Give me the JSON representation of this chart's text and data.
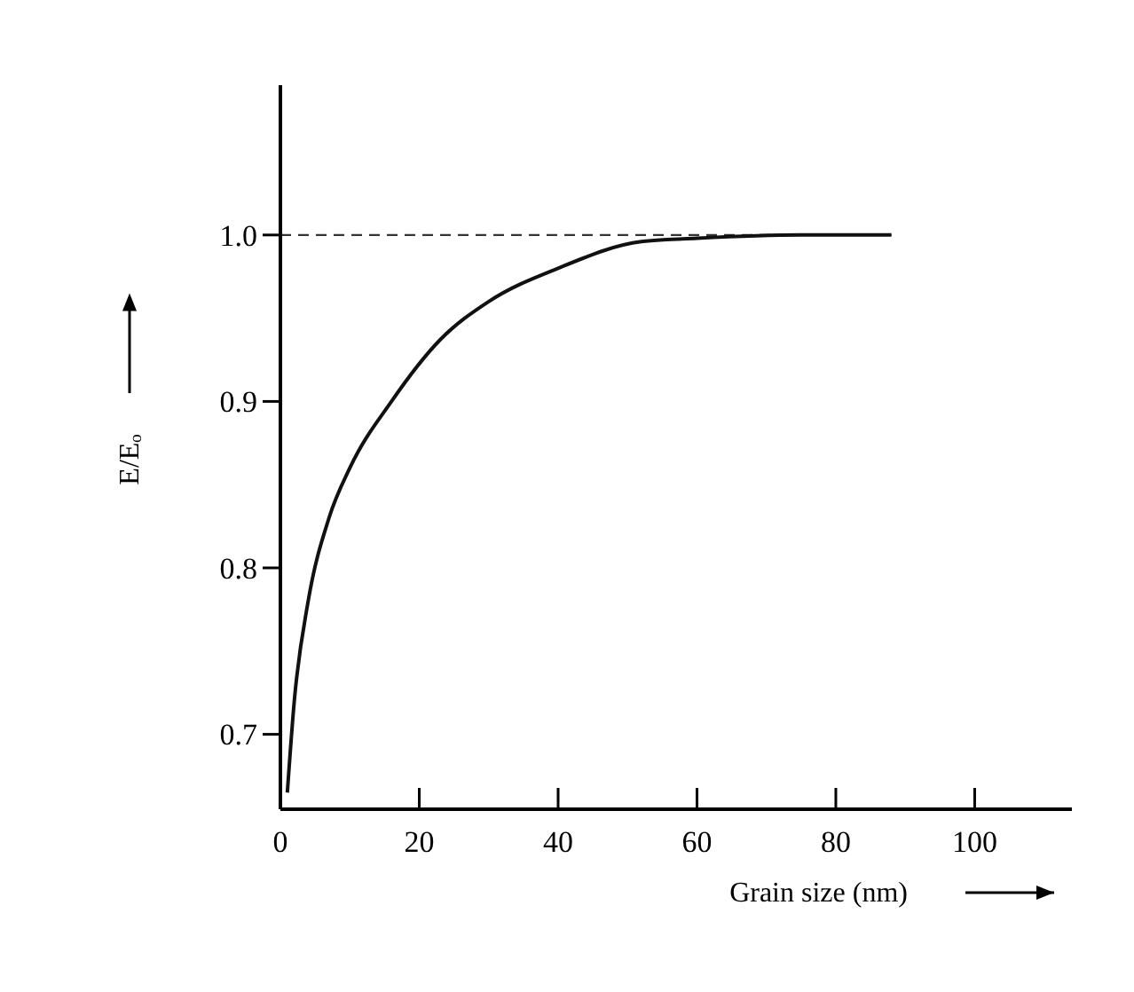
{
  "chart_data": {
    "type": "line",
    "xlabel": "Grain size (nm)",
    "ylabel": "E/Eₒ",
    "xlim": [
      0,
      114
    ],
    "ylim": [
      0.655,
      1.09
    ],
    "xticks": [
      0,
      20,
      40,
      60,
      80,
      100
    ],
    "yticks": [
      0.7,
      0.8,
      0.9,
      {
        "value": 1,
        "label": "1.0"
      }
    ],
    "series": [
      {
        "color": "#111111",
        "x": [
          1,
          2,
          4,
          7,
          10,
          16,
          23,
          30,
          40,
          52,
          60,
          75,
          88
        ],
        "values": [
          0.665,
          0.72,
          0.78,
          0.83,
          0.86,
          0.9,
          0.937,
          0.96,
          0.98,
          0.996,
          0.998,
          1.0,
          1.0
        ]
      }
    ],
    "ref_lines": [
      {
        "axis": "y",
        "value": 1,
        "line_style": "dashed",
        "color": "#333333"
      }
    ],
    "marker": "none",
    "line_style": "solid",
    "grid": false
  }
}
